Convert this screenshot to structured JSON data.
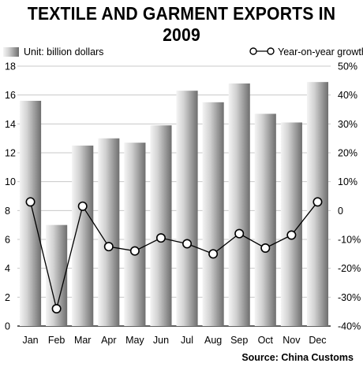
{
  "chart_data": {
    "type": "bar+line",
    "title": "TEXTILE AND GARMENT EXPORTS IN 2009",
    "source": "Source: China Customs",
    "categories": [
      "Jan",
      "Feb",
      "Mar",
      "Apr",
      "May",
      "Jun",
      "Jul",
      "Aug",
      "Sep",
      "Oct",
      "Nov",
      "Dec"
    ],
    "series": [
      {
        "name": "Unit: billion dollars",
        "type": "bar",
        "axis": "left",
        "values": [
          15.6,
          7.0,
          12.5,
          13.0,
          12.7,
          13.9,
          16.3,
          15.5,
          16.8,
          14.7,
          14.1,
          16.9
        ]
      },
      {
        "name": "Year-on-year growth",
        "type": "line",
        "axis": "right",
        "values": [
          3,
          -34,
          1.5,
          -12.5,
          -14,
          -9.5,
          -11.5,
          -15,
          -8,
          -13,
          -8.5,
          3
        ]
      }
    ],
    "left_axis": {
      "ylim": [
        0,
        18
      ],
      "ticks": [
        "0",
        "2",
        "4",
        "6",
        "8",
        "10",
        "12",
        "14",
        "16",
        "18"
      ]
    },
    "right_axis": {
      "ylim": [
        -40,
        50
      ],
      "ticks": [
        "-40%",
        "-30%",
        "-20%",
        "-10%",
        "0",
        "10%",
        "20%",
        "30%",
        "40%",
        "50%"
      ]
    },
    "grid": true,
    "legend_placement": "top",
    "colors": {
      "bar_light": "#ececec",
      "bar_dark": "#7a7a7a",
      "grid": "#c8c8c8",
      "line": "#000000"
    }
  }
}
